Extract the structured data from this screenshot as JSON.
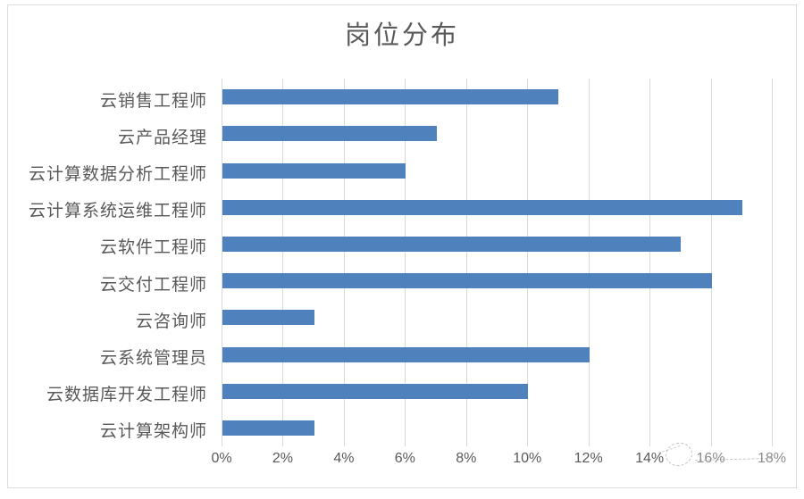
{
  "chart_data": {
    "type": "bar",
    "orientation": "horizontal",
    "title": "岗位分布",
    "categories": [
      "云销售工程师",
      "云产品经理",
      "云计算数据分析工程师",
      "云计算系统运维工程师",
      "云软件工程师",
      "云交付工程师",
      "云咨询师",
      "云系统管理员",
      "云数据库开发工程师",
      "云计算架构师"
    ],
    "values": [
      11,
      7,
      6,
      17,
      15,
      16,
      3,
      12,
      10,
      3
    ],
    "unit": "%",
    "xlabel": "",
    "ylabel": "",
    "xlim": [
      0,
      18
    ],
    "x_tick_step": 2,
    "x_ticks": [
      "0%",
      "2%",
      "4%",
      "6%",
      "8%",
      "10%",
      "12%",
      "14%",
      "16%",
      "18%"
    ],
    "grid": "vertical",
    "legend_position": "none",
    "colors": {
      "bar": "#4f81bd",
      "gridline": "#d9d9d9",
      "text": "#595959",
      "border": "#dcdcdc",
      "background": "#ffffff"
    }
  }
}
